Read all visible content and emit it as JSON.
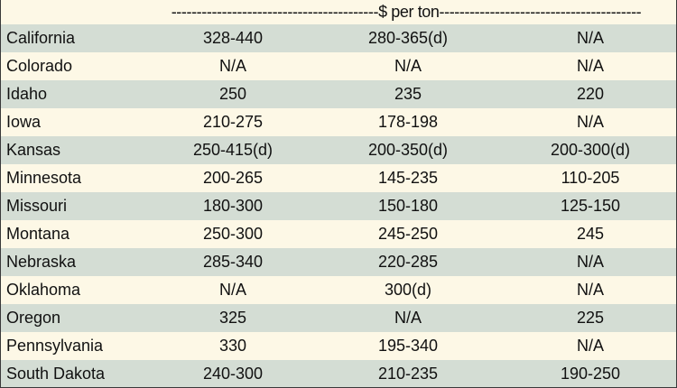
{
  "table": {
    "unit_label": "-----------------------------------------$ per ton----------------------------------------",
    "rows": [
      {
        "state": "California",
        "col1": "328-440",
        "col2": "280-365(d)",
        "col3": "N/A"
      },
      {
        "state": "Colorado",
        "col1": "N/A",
        "col2": "N/A",
        "col3": "N/A"
      },
      {
        "state": "Idaho",
        "col1": "250",
        "col2": "235",
        "col3": "220"
      },
      {
        "state": "Iowa",
        "col1": "210-275",
        "col2": "178-198",
        "col3": "N/A"
      },
      {
        "state": "Kansas",
        "col1": "250-415(d)",
        "col2": "200-350(d)",
        "col3": "200-300(d)"
      },
      {
        "state": "Minnesota",
        "col1": "200-265",
        "col2": "145-235",
        "col3": "110-205"
      },
      {
        "state": "Missouri",
        "col1": "180-300",
        "col2": "150-180",
        "col3": "125-150"
      },
      {
        "state": "Montana",
        "col1": "250-300",
        "col2": "245-250",
        "col3": "245"
      },
      {
        "state": "Nebraska",
        "col1": "285-340",
        "col2": "220-285",
        "col3": "N/A"
      },
      {
        "state": "Oklahoma",
        "col1": "N/A",
        "col2": "300(d)",
        "col3": "N/A"
      },
      {
        "state": "Oregon",
        "col1": "325",
        "col2": "N/A",
        "col3": "225"
      },
      {
        "state": "Pennsylvania",
        "col1": "330",
        "col2": "195-340",
        "col3": "N/A"
      },
      {
        "state": "South Dakota",
        "col1": "240-300",
        "col2": "210-235",
        "col3": "190-250"
      }
    ]
  }
}
